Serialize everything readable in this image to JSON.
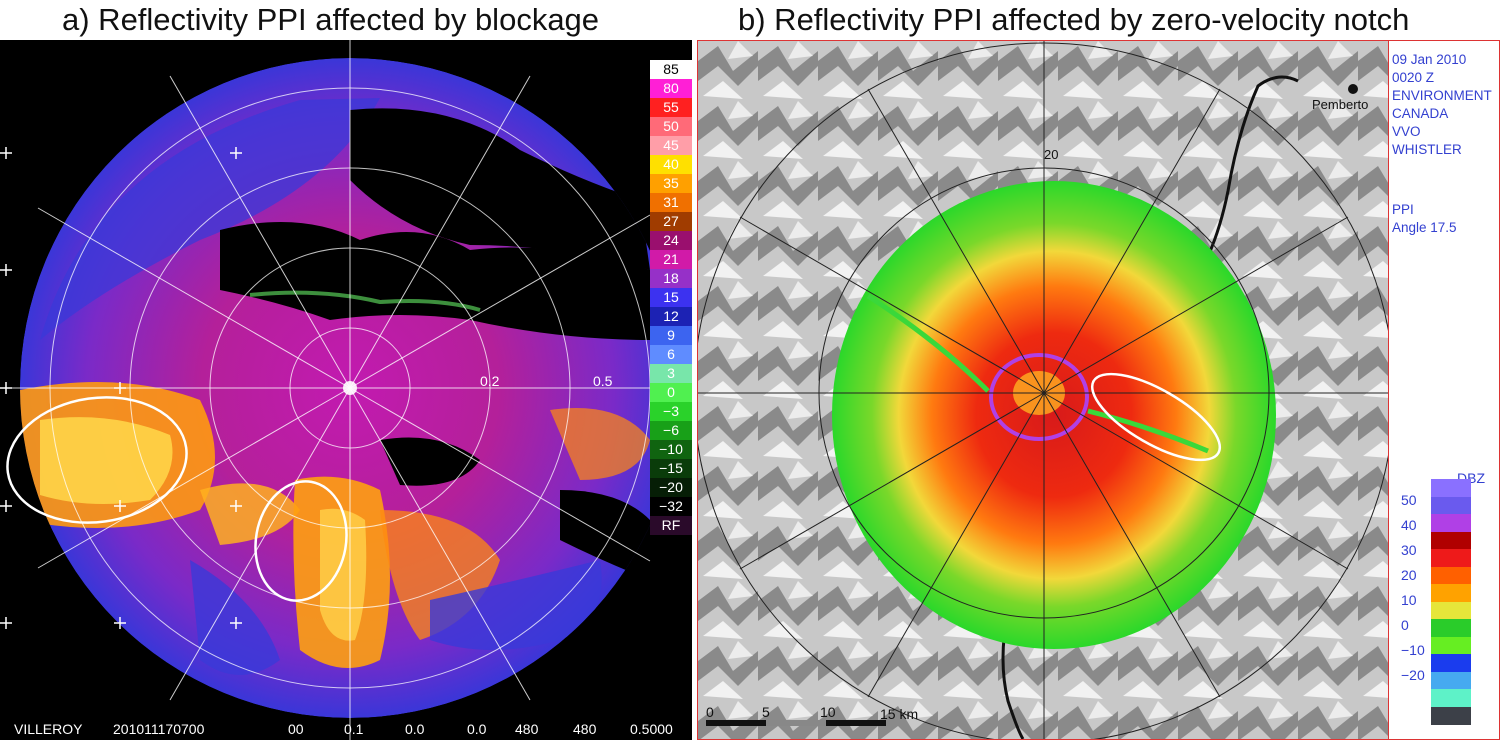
{
  "panel_a": {
    "title": "a) Reflectivity PPI affected by blockage",
    "ring_labels": [
      "0.2",
      "0.5"
    ],
    "scale": [
      {
        "label": "85",
        "color": "#ffffff",
        "text": "#000000"
      },
      {
        "label": "80",
        "color": "#ff1fd6",
        "text": "#ffffff"
      },
      {
        "label": "55",
        "color": "#ff2020",
        "text": "#ffffff"
      },
      {
        "label": "50",
        "color": "#ff6a78",
        "text": "#ffffff"
      },
      {
        "label": "45",
        "color": "#ff9ea8",
        "text": "#ffffff"
      },
      {
        "label": "40",
        "color": "#ffe000",
        "text": "#ffffff"
      },
      {
        "label": "35",
        "color": "#ffa000",
        "text": "#ffffff"
      },
      {
        "label": "31",
        "color": "#f07000",
        "text": "#ffffff"
      },
      {
        "label": "27",
        "color": "#a03c00",
        "text": "#ffffff"
      },
      {
        "label": "24",
        "color": "#9a0f6e",
        "text": "#ffffff"
      },
      {
        "label": "21",
        "color": "#d11aa8",
        "text": "#ffffff"
      },
      {
        "label": "18",
        "color": "#9630c8",
        "text": "#ffffff"
      },
      {
        "label": "15",
        "color": "#3c32f0",
        "text": "#ffffff"
      },
      {
        "label": "12",
        "color": "#1c22b4",
        "text": "#ffffff"
      },
      {
        "label": "9",
        "color": "#3c64f0",
        "text": "#ffffff"
      },
      {
        "label": "6",
        "color": "#5f8cff",
        "text": "#ffffff"
      },
      {
        "label": "3",
        "color": "#78e6aa",
        "text": "#ffffff"
      },
      {
        "label": "0",
        "color": "#50f050",
        "text": "#ffffff"
      },
      {
        "label": "−3",
        "color": "#2ad22a",
        "text": "#ffffff"
      },
      {
        "label": "−6",
        "color": "#18a018",
        "text": "#ffffff"
      },
      {
        "label": "−10",
        "color": "#106410",
        "text": "#ffffff"
      },
      {
        "label": "−15",
        "color": "#0a3c0a",
        "text": "#ffffff"
      },
      {
        "label": "−20",
        "color": "#061e06",
        "text": "#ffffff"
      },
      {
        "label": "−32",
        "color": "#000000",
        "text": "#ffffff"
      },
      {
        "label": "RF",
        "color": "#2a0a2a",
        "text": "#ffffff"
      }
    ],
    "footer": {
      "station": "VILLEROY",
      "datetime": "201011170700",
      "v1": "00",
      "v2": "0.1",
      "v3": "0.0",
      "v4": "0.0",
      "v5": "480",
      "v6": "480",
      "v7": "0.5000"
    }
  },
  "panel_b": {
    "title": "b) Reflectivity PPI affected by zero-velocity notch",
    "info": [
      "09 Jan 2010",
      "0020 Z",
      "ENVIRONMENT",
      "CANADA",
      "VVO",
      "WHISTLER"
    ],
    "ppi": [
      "PPI",
      "Angle 17.5"
    ],
    "place_label": "Pemberto",
    "ring_label": "20",
    "distance_scale": [
      "0",
      "5",
      "10",
      "15 km"
    ],
    "scale_title": "DBZ",
    "scale_labels": [
      "50",
      "40",
      "30",
      "20",
      "10",
      "0",
      "−10",
      "−20"
    ],
    "scale_colors": [
      "#8a70ff",
      "#6a5aee",
      "#b040e6",
      "#b00000",
      "#ee1a1a",
      "#ff6000",
      "#ffa200",
      "#e6e63a",
      "#2acc2a",
      "#66ee22",
      "#1a3cee",
      "#46aaf0",
      "#5ef2c8",
      "#3c4048"
    ]
  }
}
